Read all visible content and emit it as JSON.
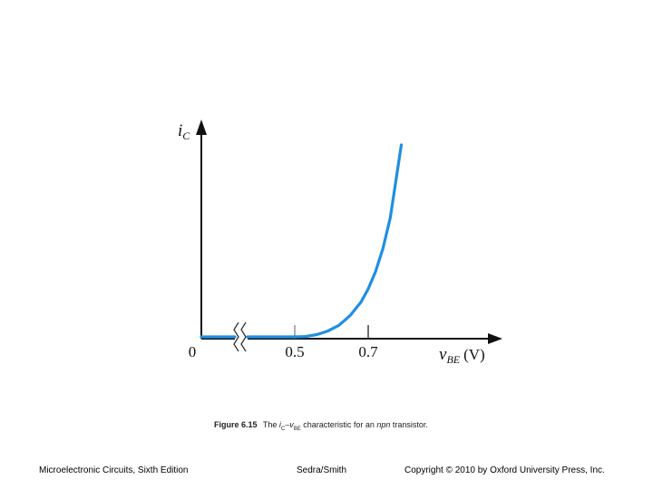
{
  "chart_data": {
    "type": "line",
    "x_ticks": [
      {
        "value": 0,
        "label": "0"
      },
      {
        "value": 0.5,
        "label": "0.5"
      },
      {
        "value": 0.7,
        "label": "0.7"
      }
    ],
    "xlabel": {
      "var": "v",
      "sub": "BE",
      "unit": "(V)"
    },
    "ylabel": {
      "var": "i",
      "sub": "C"
    },
    "axis_break": true,
    "curve_color": "#1f8fe0",
    "axis_color": "#111111",
    "curve": {
      "x": [
        0.0,
        0.5,
        0.53,
        0.56,
        0.59,
        0.62,
        0.65,
        0.68,
        0.7,
        0.72,
        0.74,
        0.76,
        0.79
      ],
      "y": [
        0.0,
        0.0,
        0.002,
        0.012,
        0.03,
        0.06,
        0.11,
        0.18,
        0.25,
        0.34,
        0.46,
        0.62,
        1.0
      ]
    },
    "xlim": [
      0.0,
      0.88
    ],
    "ylim": [
      0.0,
      1.1
    ]
  },
  "caption": {
    "figure_label": "Figure 6.15",
    "text_before": "The",
    "i_var": "i",
    "i_sub": "C",
    "dash": "–",
    "v_var": "v",
    "v_sub": "BE",
    "text_mid": "characteristic for an",
    "npn": "npn",
    "text_end": "transistor."
  },
  "footer": {
    "left": "Microelectronic Circuits, Sixth Edition",
    "center": "Sedra/Smith",
    "right": "Copyright © 2010 by Oxford University Press, Inc."
  }
}
